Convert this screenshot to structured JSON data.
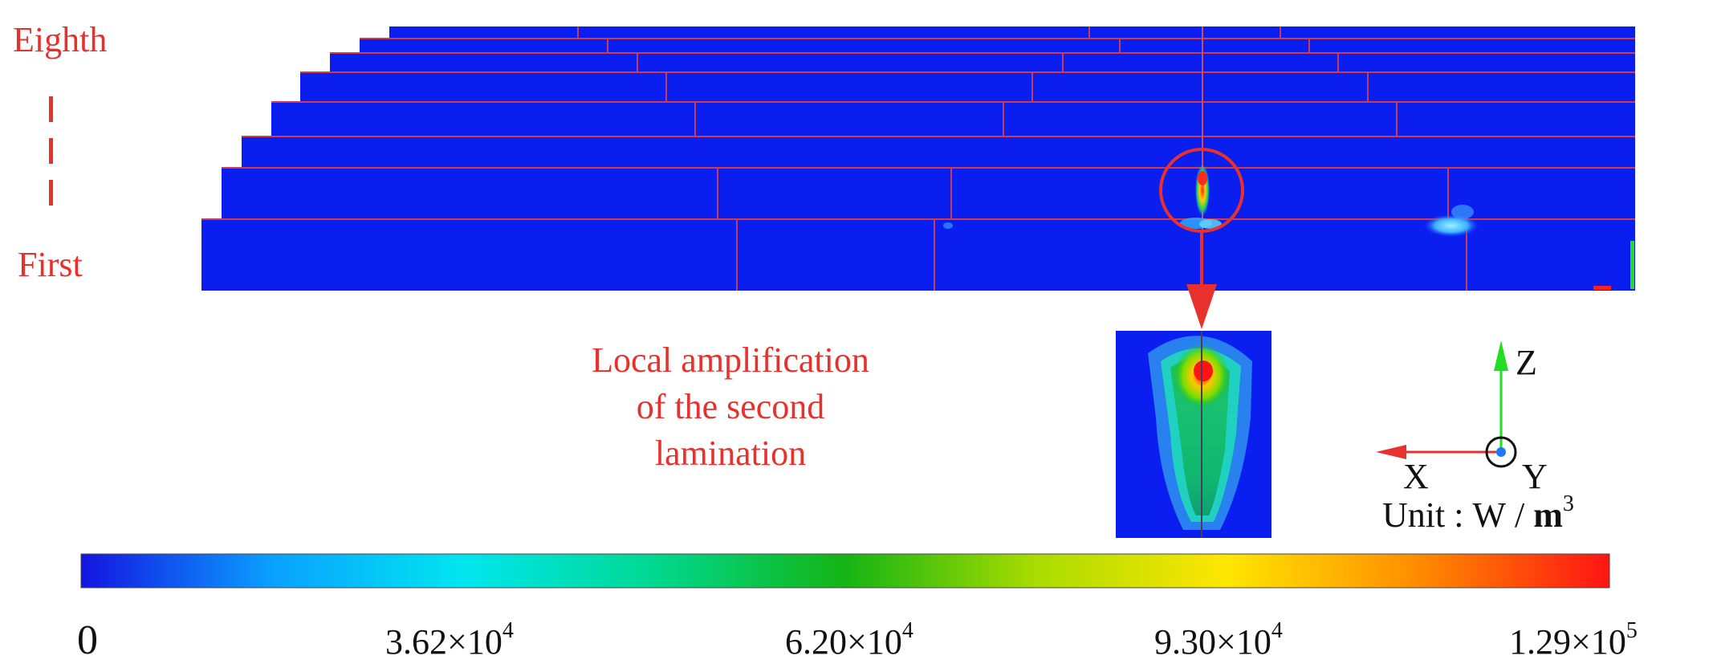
{
  "figure": {
    "layer_labels": {
      "top": "Eighth",
      "bottom": "First"
    },
    "amplification_label": [
      "Local amplification",
      "of the second",
      "lamination"
    ],
    "axes": {
      "z": "Z",
      "x": "X",
      "y": "Y"
    },
    "unit": {
      "prefix": "Unit : W / ",
      "base": "m",
      "exp": "3"
    },
    "colorbar": {
      "stops": [
        "#1414e0",
        "#0aa0ff",
        "#00e6f0",
        "#00d890",
        "#14b414",
        "#aadc00",
        "#ffe600",
        "#ff8c00",
        "#ff1414"
      ],
      "ticks": [
        {
          "mantissa": "0",
          "exp": ""
        },
        {
          "mantissa": "3.62×10",
          "exp": "4"
        },
        {
          "mantissa": "6.20×10",
          "exp": "4"
        },
        {
          "mantissa": "9.30×10",
          "exp": "4"
        },
        {
          "mantissa": "1.29×10",
          "exp": "5"
        }
      ]
    },
    "colors": {
      "model_blue": "#0a1ef0",
      "seam_red": "#d23c4a",
      "annotation_red": "#e8302c",
      "axis_green": "#22dd22"
    }
  }
}
